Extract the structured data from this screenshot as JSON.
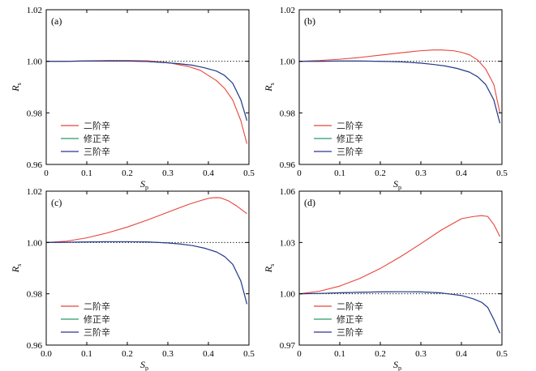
{
  "chart_data": [
    {
      "type": "line",
      "panel_label": "(a)",
      "xlabel": "S",
      "xlabel_sub": "p",
      "ylabel": "R",
      "ylabel_sub": "s",
      "xlim": [
        0,
        0.5
      ],
      "ylim": [
        0.96,
        1.02
      ],
      "xticks": [
        "0",
        "0.1",
        "0.2",
        "0.3",
        "0.4",
        "0.5"
      ],
      "xtick_values": [
        0,
        0.1,
        0.2,
        0.3,
        0.4,
        0.5
      ],
      "yticks": [
        "0.96",
        "0.98",
        "1.00",
        "1.02"
      ],
      "ytick_values": [
        0.96,
        0.98,
        1.0,
        1.02
      ],
      "reference_line": 1.0,
      "legend": [
        "二阶辛",
        "修正辛",
        "三阶辛"
      ],
      "series": [
        {
          "name": "二阶辛",
          "color": "#e8443a",
          "x": [
            0,
            0.05,
            0.1,
            0.15,
            0.2,
            0.25,
            0.3,
            0.35,
            0.38,
            0.4,
            0.42,
            0.44,
            0.46,
            0.48,
            0.495
          ],
          "y": [
            1.0,
            1.0,
            1.0002,
            1.0003,
            1.0003,
            1.0002,
            0.9995,
            0.998,
            0.9965,
            0.9945,
            0.9925,
            0.9895,
            0.985,
            0.977,
            0.968
          ]
        },
        {
          "name": "修正辛",
          "color": "#2a9a6a",
          "x": [
            0,
            0.05,
            0.1,
            0.15,
            0.2,
            0.25,
            0.3,
            0.33,
            0.36,
            0.39,
            0.42,
            0.44,
            0.46,
            0.48,
            0.495
          ],
          "y": [
            1.0,
            1.0,
            1.0001,
            1.0001,
            1.0001,
            0.9999,
            0.9994,
            0.999,
            0.9985,
            0.9975,
            0.9962,
            0.9945,
            0.9915,
            0.985,
            0.977
          ]
        },
        {
          "name": "三阶辛",
          "color": "#2c3491",
          "x": [
            0,
            0.05,
            0.1,
            0.15,
            0.2,
            0.25,
            0.3,
            0.33,
            0.36,
            0.39,
            0.42,
            0.44,
            0.46,
            0.48,
            0.495
          ],
          "y": [
            1.0,
            1.0,
            1.0001,
            1.0001,
            1.0001,
            0.9999,
            0.9994,
            0.999,
            0.9985,
            0.9975,
            0.9962,
            0.9945,
            0.9915,
            0.985,
            0.977
          ]
        }
      ]
    },
    {
      "type": "line",
      "panel_label": "(b)",
      "xlabel": "S",
      "xlabel_sub": "p",
      "ylabel": "R",
      "ylabel_sub": "s",
      "xlim": [
        0,
        0.5
      ],
      "ylim": [
        0.96,
        1.02
      ],
      "xticks": [
        "0",
        "0.1",
        "0.2",
        "0.3",
        "0.4",
        "0.5"
      ],
      "xtick_values": [
        0,
        0.1,
        0.2,
        0.3,
        0.4,
        0.5
      ],
      "yticks": [
        "0.96",
        "0.98",
        "1.00",
        "1.02"
      ],
      "ytick_values": [
        0.96,
        0.98,
        1.0,
        1.02
      ],
      "reference_line": 1.0,
      "legend": [
        "二阶辛",
        "修正辛",
        "三阶辛"
      ],
      "series": [
        {
          "name": "二阶辛",
          "color": "#e8443a",
          "x": [
            0,
            0.05,
            0.1,
            0.15,
            0.2,
            0.25,
            0.3,
            0.33,
            0.35,
            0.38,
            0.4,
            0.42,
            0.44,
            0.46,
            0.48,
            0.495
          ],
          "y": [
            1.0,
            1.0003,
            1.0008,
            1.0015,
            1.0024,
            1.0033,
            1.0041,
            1.0044,
            1.0044,
            1.0041,
            1.0035,
            1.0025,
            1.0005,
            0.997,
            0.991,
            0.98
          ]
        },
        {
          "name": "修正辛",
          "color": "#2a9a6a",
          "x": [
            0,
            0.05,
            0.1,
            0.15,
            0.2,
            0.25,
            0.3,
            0.33,
            0.36,
            0.39,
            0.42,
            0.44,
            0.46,
            0.48,
            0.495
          ],
          "y": [
            1.0,
            1.0,
            1.0001,
            1.0001,
            1.0,
            0.9998,
            0.9993,
            0.9988,
            0.9982,
            0.9972,
            0.9958,
            0.994,
            0.991,
            0.985,
            0.976
          ]
        },
        {
          "name": "三阶辛",
          "color": "#2c3491",
          "x": [
            0,
            0.05,
            0.1,
            0.15,
            0.2,
            0.25,
            0.3,
            0.33,
            0.36,
            0.39,
            0.42,
            0.44,
            0.46,
            0.48,
            0.495
          ],
          "y": [
            1.0,
            1.0,
            1.0001,
            1.0001,
            1.0,
            0.9998,
            0.9993,
            0.9988,
            0.9982,
            0.9972,
            0.9958,
            0.994,
            0.991,
            0.985,
            0.976
          ]
        }
      ]
    },
    {
      "type": "line",
      "panel_label": "(c)",
      "xlabel": "S",
      "xlabel_sub": "p",
      "ylabel": "R",
      "ylabel_sub": "s",
      "xlim": [
        0,
        0.5
      ],
      "ylim": [
        0.96,
        1.02
      ],
      "xticks": [
        "0.0",
        "0.1",
        "0.2",
        "0.3",
        "0.4",
        "0.5"
      ],
      "xtick_values": [
        0,
        0.1,
        0.2,
        0.3,
        0.4,
        0.5
      ],
      "yticks": [
        "0.96",
        "0.98",
        "1.00",
        "1.02"
      ],
      "ytick_values": [
        0.96,
        0.98,
        1.0,
        1.02
      ],
      "reference_line": 1.0,
      "legend": [
        "二阶辛",
        "修正辛",
        "三阶辛"
      ],
      "series": [
        {
          "name": "二阶辛",
          "color": "#e8443a",
          "x": [
            0,
            0.05,
            0.1,
            0.15,
            0.2,
            0.25,
            0.3,
            0.35,
            0.38,
            0.4,
            0.41,
            0.42,
            0.43,
            0.45,
            0.47,
            0.495
          ],
          "y": [
            1.0,
            1.0005,
            1.0018,
            1.0037,
            1.006,
            1.0088,
            1.0118,
            1.0148,
            1.0163,
            1.0172,
            1.0174,
            1.0175,
            1.0174,
            1.0162,
            1.0142,
            1.0112
          ]
        },
        {
          "name": "修正辛",
          "color": "#2a9a6a",
          "x": [
            0,
            0.05,
            0.1,
            0.15,
            0.2,
            0.25,
            0.3,
            0.33,
            0.36,
            0.39,
            0.42,
            0.44,
            0.46,
            0.48,
            0.495
          ],
          "y": [
            1.0,
            1.0001,
            1.0002,
            1.0003,
            1.0003,
            1.0002,
            0.9998,
            0.9994,
            0.9988,
            0.9978,
            0.9963,
            0.9945,
            0.9915,
            0.985,
            0.976
          ]
        },
        {
          "name": "三阶辛",
          "color": "#2c3491",
          "x": [
            0,
            0.05,
            0.1,
            0.15,
            0.2,
            0.25,
            0.3,
            0.33,
            0.36,
            0.39,
            0.42,
            0.44,
            0.46,
            0.48,
            0.495
          ],
          "y": [
            1.0,
            1.0001,
            1.0002,
            1.0003,
            1.0003,
            1.0002,
            0.9998,
            0.9994,
            0.9988,
            0.9978,
            0.9963,
            0.9945,
            0.9915,
            0.985,
            0.976
          ]
        }
      ]
    },
    {
      "type": "line",
      "panel_label": "(d)",
      "xlabel": "S",
      "xlabel_sub": "p",
      "ylabel": "R",
      "ylabel_sub": "s",
      "xlim": [
        0,
        0.5
      ],
      "ylim": [
        0.97,
        1.06
      ],
      "xticks": [
        "0",
        "0.1",
        "0.2",
        "0.3",
        "0.4",
        "0.5"
      ],
      "xtick_values": [
        0,
        0.1,
        0.2,
        0.3,
        0.4,
        0.5
      ],
      "yticks": [
        "0.97",
        "1.00",
        "1.03",
        "1.06"
      ],
      "ytick_values": [
        0.97,
        1.0,
        1.03,
        1.06
      ],
      "reference_line": 1.0,
      "legend": [
        "二阶辛",
        "修正辛",
        "三阶辛"
      ],
      "series": [
        {
          "name": "二阶辛",
          "color": "#e8443a",
          "x": [
            0,
            0.05,
            0.1,
            0.15,
            0.2,
            0.25,
            0.3,
            0.35,
            0.4,
            0.43,
            0.45,
            0.465,
            0.48,
            0.495
          ],
          "y": [
            1.0,
            1.0015,
            1.0045,
            1.009,
            1.0148,
            1.0217,
            1.0293,
            1.0372,
            1.0439,
            1.0452,
            1.0457,
            1.0452,
            1.0405,
            1.0335
          ]
        },
        {
          "name": "修正辛",
          "color": "#2a9a6a",
          "x": [
            0,
            0.05,
            0.1,
            0.15,
            0.2,
            0.25,
            0.3,
            0.35,
            0.4,
            0.43,
            0.45,
            0.465,
            0.48,
            0.495
          ],
          "y": [
            1.0,
            1.0002,
            1.0006,
            1.0009,
            1.0011,
            1.0012,
            1.0011,
            1.0005,
            0.999,
            0.997,
            0.995,
            0.992,
            0.985,
            0.977
          ]
        },
        {
          "name": "三阶辛",
          "color": "#2c3491",
          "x": [
            0,
            0.05,
            0.1,
            0.15,
            0.2,
            0.25,
            0.3,
            0.35,
            0.4,
            0.43,
            0.45,
            0.465,
            0.48,
            0.495
          ],
          "y": [
            1.0,
            1.0002,
            1.0006,
            1.0009,
            1.0011,
            1.0012,
            1.0011,
            1.0005,
            0.999,
            0.997,
            0.995,
            0.992,
            0.985,
            0.977
          ]
        }
      ]
    }
  ]
}
